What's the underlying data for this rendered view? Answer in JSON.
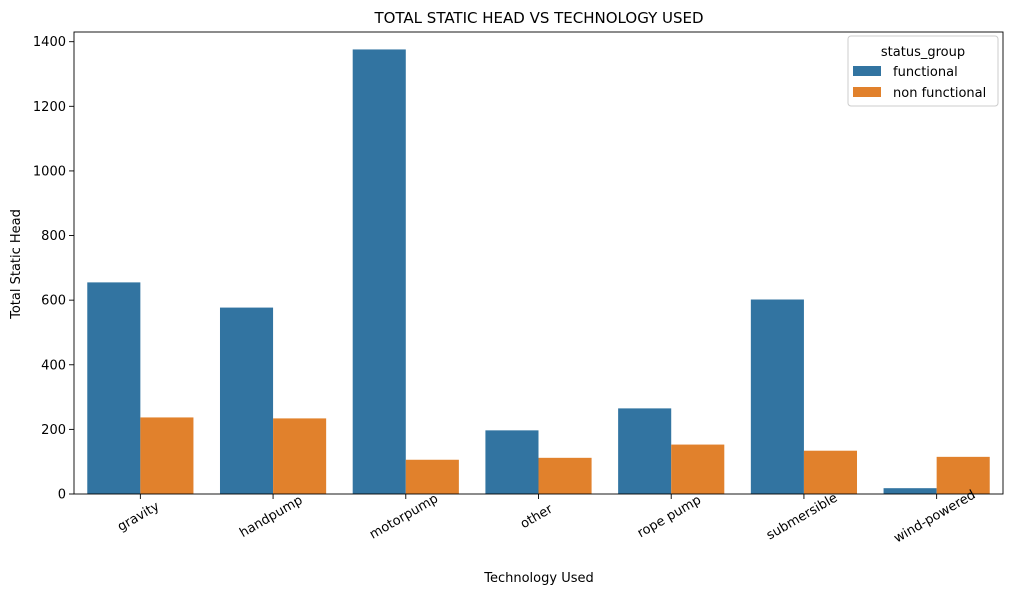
{
  "chart_data": {
    "type": "bar",
    "title": "TOTAL STATIC HEAD VS TECHNOLOGY USED",
    "xlabel": "Technology Used",
    "ylabel": "Total Static Head",
    "categories": [
      "gravity",
      "handpump",
      "motorpump",
      "other",
      "rope pump",
      "submersible",
      "wind-powered"
    ],
    "series": [
      {
        "name": "functional",
        "color": "#3274a1",
        "values": [
          655,
          577,
          1376,
          197,
          265,
          602,
          18
        ]
      },
      {
        "name": "non functional",
        "color": "#e1812c",
        "values": [
          237,
          234,
          106,
          112,
          153,
          134,
          115
        ]
      }
    ],
    "ylim": [
      0,
      1430
    ],
    "yticks": [
      0,
      200,
      400,
      600,
      800,
      1000,
      1200,
      1400
    ],
    "legend": {
      "title": "status_group",
      "position": "top-right"
    },
    "grid": false
  }
}
